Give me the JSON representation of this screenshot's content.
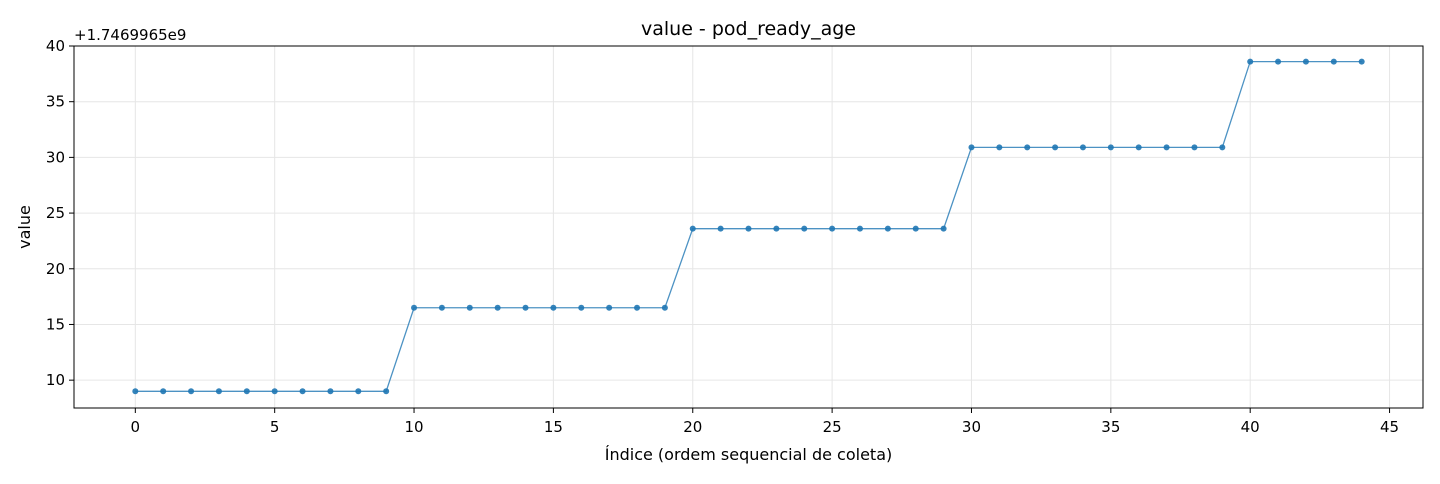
{
  "chart_data": {
    "type": "line",
    "title": "value - pod_ready_age",
    "xlabel": "Índice (ordem sequencial de coleta)",
    "ylabel": "value",
    "y_offset_label": "+1.7469965e9",
    "xlim": [
      -2.2,
      46.2
    ],
    "ylim": [
      7.5,
      40
    ],
    "xticks": [
      0,
      5,
      10,
      15,
      20,
      25,
      30,
      35,
      40,
      45
    ],
    "yticks": [
      10,
      15,
      20,
      25,
      30,
      35,
      40
    ],
    "grid": true,
    "line_color": "#1f77b4",
    "series": [
      {
        "x": [
          0,
          1,
          2,
          3,
          4,
          5,
          6,
          7,
          8,
          9,
          10,
          11,
          12,
          13,
          14,
          15,
          16,
          17,
          18,
          19,
          20,
          21,
          22,
          23,
          24,
          25,
          26,
          27,
          28,
          29,
          30,
          31,
          32,
          33,
          34,
          35,
          36,
          37,
          38,
          39,
          40,
          41,
          42,
          43,
          44
        ],
        "values": [
          9.0,
          9.0,
          9.0,
          9.0,
          9.0,
          9.0,
          9.0,
          9.0,
          9.0,
          9.0,
          16.5,
          16.5,
          16.5,
          16.5,
          16.5,
          16.5,
          16.5,
          16.5,
          16.5,
          16.5,
          23.6,
          23.6,
          23.6,
          23.6,
          23.6,
          23.6,
          23.6,
          23.6,
          23.6,
          23.6,
          30.9,
          30.9,
          30.9,
          30.9,
          30.9,
          30.9,
          30.9,
          30.9,
          30.9,
          30.9,
          38.6,
          38.6,
          38.6,
          38.6,
          38.6
        ]
      }
    ]
  }
}
